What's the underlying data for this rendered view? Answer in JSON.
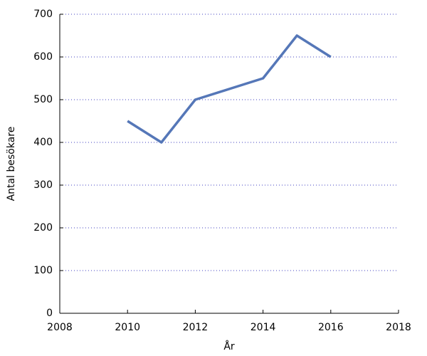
{
  "chart_data": {
    "type": "line",
    "x_label": "År",
    "y_label": "Antal besökare",
    "x": [
      2010,
      2011,
      2012,
      2013,
      2014,
      2015,
      2016
    ],
    "series": [
      {
        "color": "#5577b8",
        "values": [
          450,
          400,
          500,
          525,
          550,
          650,
          600
        ]
      }
    ],
    "xlim": [
      2008,
      2018
    ],
    "xticks": [
      2008,
      2010,
      2012,
      2014,
      2016,
      2018
    ],
    "ylim": [
      0,
      700
    ],
    "yticks": [
      0,
      100,
      200,
      300,
      400,
      500,
      600,
      700
    ],
    "grid": true
  }
}
